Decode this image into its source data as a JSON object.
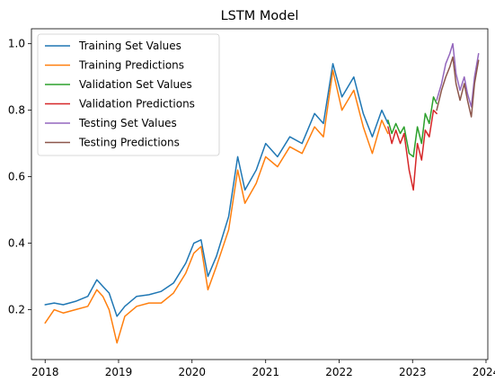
{
  "chart_data": {
    "type": "line",
    "title": "LSTM Model",
    "xlabel": "",
    "ylabel": "",
    "xlim": [
      "2017-10-25",
      "2024-01-10"
    ],
    "ylim": [
      0.05,
      1.045
    ],
    "x_ticks": [
      "2018-01-01",
      "2019-01-01",
      "2020-01-01",
      "2021-01-01",
      "2022-01-01",
      "2023-01-01",
      "2024-01-01"
    ],
    "x_tick_labels": [
      "2018",
      "2019",
      "2020",
      "2021",
      "2022",
      "2023",
      "2024"
    ],
    "y_ticks": [
      0.2,
      0.4,
      0.6,
      0.8,
      1.0
    ],
    "y_tick_labels": [
      "0.2",
      "0.4",
      "0.6",
      "0.8",
      "1.0"
    ],
    "grid": false,
    "legend_position": "top-left",
    "series": [
      {
        "name": "Training Set Values",
        "color": "#1f77b4",
        "points": [
          [
            "2018-01-01",
            0.215
          ],
          [
            "2018-02-15",
            0.22
          ],
          [
            "2018-04-01",
            0.215
          ],
          [
            "2018-06-01",
            0.225
          ],
          [
            "2018-08-01",
            0.24
          ],
          [
            "2018-09-15",
            0.29
          ],
          [
            "2018-10-15",
            0.27
          ],
          [
            "2018-11-15",
            0.25
          ],
          [
            "2018-12-24",
            0.18
          ],
          [
            "2019-02-01",
            0.21
          ],
          [
            "2019-04-01",
            0.24
          ],
          [
            "2019-06-01",
            0.245
          ],
          [
            "2019-08-01",
            0.255
          ],
          [
            "2019-10-01",
            0.28
          ],
          [
            "2019-12-01",
            0.34
          ],
          [
            "2020-01-10",
            0.4
          ],
          [
            "2020-02-15",
            0.41
          ],
          [
            "2020-03-20",
            0.3
          ],
          [
            "2020-05-01",
            0.36
          ],
          [
            "2020-07-01",
            0.48
          ],
          [
            "2020-08-15",
            0.66
          ],
          [
            "2020-09-20",
            0.56
          ],
          [
            "2020-11-15",
            0.62
          ],
          [
            "2021-01-01",
            0.7
          ],
          [
            "2021-03-01",
            0.66
          ],
          [
            "2021-05-01",
            0.72
          ],
          [
            "2021-07-01",
            0.7
          ],
          [
            "2021-09-01",
            0.79
          ],
          [
            "2021-10-15",
            0.76
          ],
          [
            "2021-12-01",
            0.94
          ],
          [
            "2022-01-15",
            0.84
          ],
          [
            "2022-03-15",
            0.9
          ],
          [
            "2022-05-01",
            0.79
          ],
          [
            "2022-06-15",
            0.72
          ],
          [
            "2022-08-01",
            0.8
          ],
          [
            "2022-09-01",
            0.76
          ]
        ]
      },
      {
        "name": "Training Predictions",
        "color": "#ff7f0e",
        "points": [
          [
            "2018-01-01",
            0.16
          ],
          [
            "2018-02-15",
            0.2
          ],
          [
            "2018-04-01",
            0.19
          ],
          [
            "2018-06-01",
            0.2
          ],
          [
            "2018-08-01",
            0.21
          ],
          [
            "2018-09-15",
            0.26
          ],
          [
            "2018-10-15",
            0.24
          ],
          [
            "2018-11-15",
            0.2
          ],
          [
            "2018-12-24",
            0.1
          ],
          [
            "2019-02-01",
            0.18
          ],
          [
            "2019-04-01",
            0.21
          ],
          [
            "2019-06-01",
            0.22
          ],
          [
            "2019-08-01",
            0.22
          ],
          [
            "2019-10-01",
            0.25
          ],
          [
            "2019-12-01",
            0.31
          ],
          [
            "2020-01-10",
            0.37
          ],
          [
            "2020-02-15",
            0.39
          ],
          [
            "2020-03-20",
            0.26
          ],
          [
            "2020-05-01",
            0.33
          ],
          [
            "2020-07-01",
            0.44
          ],
          [
            "2020-08-15",
            0.62
          ],
          [
            "2020-09-20",
            0.52
          ],
          [
            "2020-11-15",
            0.58
          ],
          [
            "2021-01-01",
            0.66
          ],
          [
            "2021-03-01",
            0.63
          ],
          [
            "2021-05-01",
            0.69
          ],
          [
            "2021-07-01",
            0.67
          ],
          [
            "2021-09-01",
            0.75
          ],
          [
            "2021-10-15",
            0.72
          ],
          [
            "2021-12-01",
            0.92
          ],
          [
            "2022-01-15",
            0.8
          ],
          [
            "2022-03-15",
            0.86
          ],
          [
            "2022-05-01",
            0.75
          ],
          [
            "2022-06-15",
            0.67
          ],
          [
            "2022-08-01",
            0.77
          ],
          [
            "2022-09-01",
            0.73
          ]
        ]
      },
      {
        "name": "Validation Set Values",
        "color": "#2ca02c",
        "points": [
          [
            "2022-09-01",
            0.77
          ],
          [
            "2022-09-20",
            0.73
          ],
          [
            "2022-10-10",
            0.76
          ],
          [
            "2022-11-01",
            0.73
          ],
          [
            "2022-11-20",
            0.75
          ],
          [
            "2022-12-15",
            0.67
          ],
          [
            "2023-01-05",
            0.66
          ],
          [
            "2023-01-25",
            0.75
          ],
          [
            "2023-02-15",
            0.7
          ],
          [
            "2023-03-05",
            0.79
          ],
          [
            "2023-03-25",
            0.76
          ],
          [
            "2023-04-15",
            0.84
          ],
          [
            "2023-05-01",
            0.82
          ]
        ]
      },
      {
        "name": "Validation Predictions",
        "color": "#d62728",
        "points": [
          [
            "2022-09-01",
            0.75
          ],
          [
            "2022-09-20",
            0.7
          ],
          [
            "2022-10-10",
            0.74
          ],
          [
            "2022-11-01",
            0.7
          ],
          [
            "2022-11-20",
            0.73
          ],
          [
            "2022-12-15",
            0.62
          ],
          [
            "2023-01-05",
            0.56
          ],
          [
            "2023-01-25",
            0.7
          ],
          [
            "2023-02-15",
            0.65
          ],
          [
            "2023-03-05",
            0.74
          ],
          [
            "2023-03-25",
            0.72
          ],
          [
            "2023-04-15",
            0.8
          ],
          [
            "2023-05-01",
            0.79
          ]
        ]
      },
      {
        "name": "Testing Set Values",
        "color": "#9467bd",
        "points": [
          [
            "2023-05-01",
            0.83
          ],
          [
            "2023-05-25",
            0.88
          ],
          [
            "2023-06-15",
            0.94
          ],
          [
            "2023-07-05",
            0.97
          ],
          [
            "2023-07-20",
            1.0
          ],
          [
            "2023-08-05",
            0.91
          ],
          [
            "2023-08-25",
            0.86
          ],
          [
            "2023-09-15",
            0.9
          ],
          [
            "2023-10-01",
            0.85
          ],
          [
            "2023-10-20",
            0.81
          ],
          [
            "2023-11-05",
            0.9
          ],
          [
            "2023-11-25",
            0.97
          ]
        ]
      },
      {
        "name": "Testing Predictions",
        "color": "#8c564b",
        "points": [
          [
            "2023-05-01",
            0.8
          ],
          [
            "2023-05-25",
            0.86
          ],
          [
            "2023-06-15",
            0.9
          ],
          [
            "2023-07-05",
            0.93
          ],
          [
            "2023-07-20",
            0.96
          ],
          [
            "2023-08-05",
            0.88
          ],
          [
            "2023-08-25",
            0.83
          ],
          [
            "2023-09-15",
            0.88
          ],
          [
            "2023-10-01",
            0.83
          ],
          [
            "2023-10-20",
            0.78
          ],
          [
            "2023-11-05",
            0.88
          ],
          [
            "2023-11-25",
            0.95
          ]
        ]
      }
    ]
  }
}
